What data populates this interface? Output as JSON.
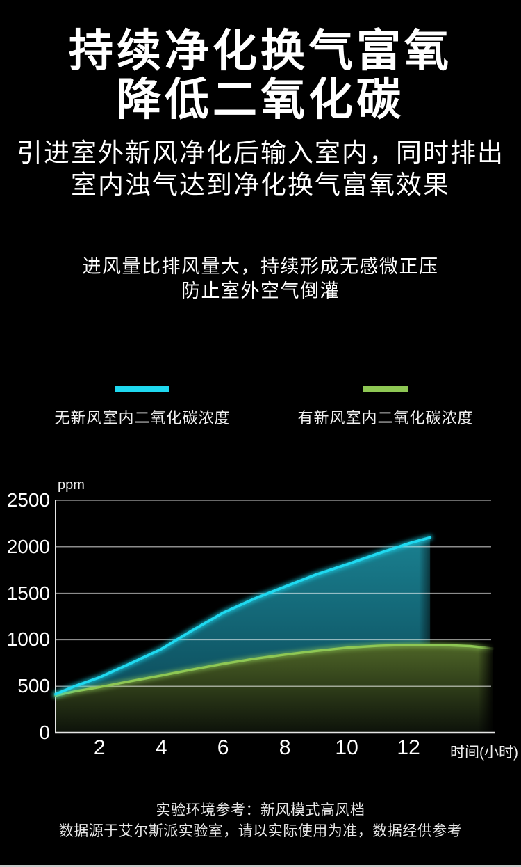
{
  "title": {
    "line1": "持续净化换气富氧",
    "line2": "降低二氧化碳"
  },
  "subtitle": {
    "line1": "引进室外新风净化后输入室内，同时排出",
    "line2": "室内浊气达到净化换气富氧效果"
  },
  "note": {
    "line1": "进风量比排风量大，持续形成无感微正压",
    "line2": "防止室外空气倒灌"
  },
  "legend": {
    "items": [
      {
        "label": "无新风室内二氧化碳浓度",
        "color": "#1fd9f0"
      },
      {
        "label": "有新风室内二氧化碳浓度",
        "color": "#8ec754"
      }
    ]
  },
  "chart_data": {
    "type": "area",
    "y_unit": "ppm",
    "x_axis_label": "时间(小时)",
    "x_ticks": [
      2,
      4,
      6,
      8,
      10,
      12
    ],
    "y_ticks": [
      0,
      500,
      1000,
      1500,
      2000,
      2500
    ],
    "ylim": [
      0,
      2500
    ],
    "xlim": [
      0.58,
      14.74
    ],
    "grid": true,
    "legend_position": "above",
    "axis_color": "#e6e6e6",
    "grid_color": "rgba(255,255,255,0.55)",
    "series": [
      {
        "name": "无新风室内二氧化碳浓度",
        "color": "#1fd9f0",
        "fill_top": "#1a8191",
        "fill_bottom": "#0a4150",
        "x": [
          0.58,
          1.2,
          2,
          3,
          4,
          5,
          6,
          7,
          8,
          9,
          10,
          11,
          12,
          12.7
        ],
        "values": [
          415,
          500,
          595,
          745,
          900,
          1100,
          1290,
          1440,
          1570,
          1700,
          1810,
          1925,
          2035,
          2100
        ]
      },
      {
        "name": "有新风室内二氧化碳浓度",
        "color": "#8ec754",
        "fill_top": "#4e6527",
        "fill_bottom": "#0d120a",
        "x": [
          0.58,
          1.2,
          2,
          3,
          4,
          5,
          6,
          7,
          8,
          9,
          10,
          11,
          12,
          13,
          14,
          14.74
        ],
        "values": [
          400,
          445,
          490,
          555,
          615,
          680,
          740,
          795,
          840,
          880,
          915,
          935,
          945,
          945,
          932,
          905
        ]
      }
    ]
  },
  "footer": {
    "line1": "实验环境参考：新风模式高风档",
    "line2": "数据源于艾尔斯派实验室，请以实际使用为准，数据经供参考"
  }
}
